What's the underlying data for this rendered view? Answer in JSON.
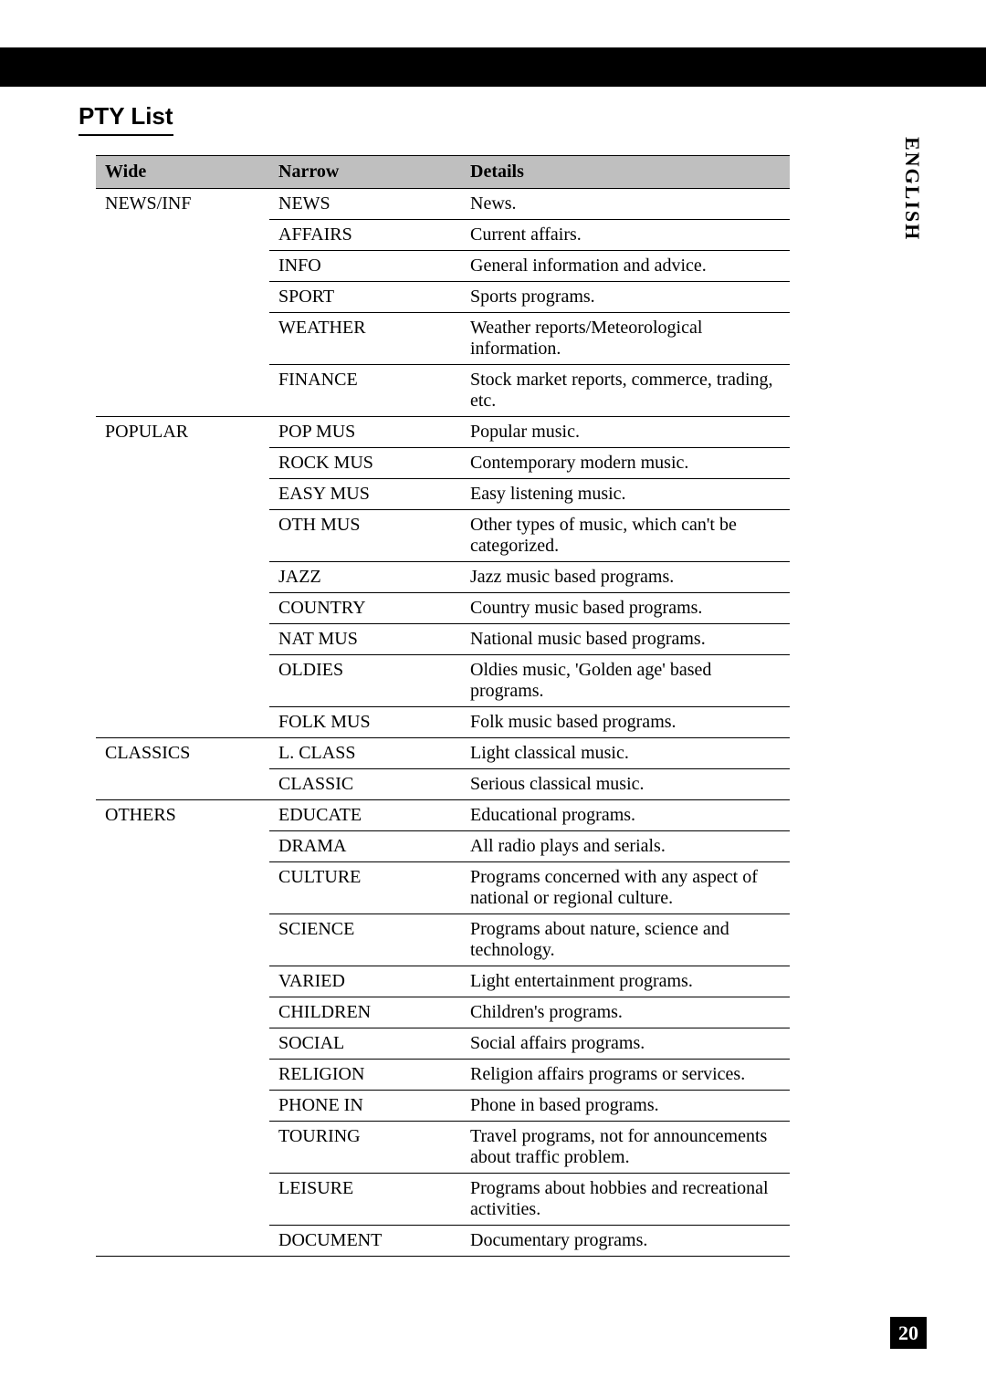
{
  "title": "PTY List",
  "side_tab": "ENGLISH",
  "page_number": "20",
  "table": {
    "columns": [
      "Wide",
      "Narrow",
      "Details"
    ],
    "groups": [
      {
        "wide": "NEWS/INF",
        "rows": [
          {
            "narrow": "NEWS",
            "details": "News."
          },
          {
            "narrow": "AFFAIRS",
            "details": "Current affairs."
          },
          {
            "narrow": "INFO",
            "details": "General information and advice."
          },
          {
            "narrow": "SPORT",
            "details": "Sports programs."
          },
          {
            "narrow": "WEATHER",
            "details": "Weather reports/Meteorological information."
          },
          {
            "narrow": "FINANCE",
            "details": "Stock market reports, commerce, trading, etc."
          }
        ]
      },
      {
        "wide": "POPULAR",
        "rows": [
          {
            "narrow": "POP MUS",
            "details": "Popular music."
          },
          {
            "narrow": "ROCK MUS",
            "details": "Contemporary modern music."
          },
          {
            "narrow": "EASY MUS",
            "details": "Easy listening music."
          },
          {
            "narrow": "OTH MUS",
            "details": "Other types of music, which can't be categorized."
          },
          {
            "narrow": "JAZZ",
            "details": "Jazz music based programs."
          },
          {
            "narrow": "COUNTRY",
            "details": "Country music based programs."
          },
          {
            "narrow": "NAT MUS",
            "details": "National music based programs."
          },
          {
            "narrow": "OLDIES",
            "details": "Oldies music, 'Golden age' based programs."
          },
          {
            "narrow": "FOLK MUS",
            "details": "Folk music based programs."
          }
        ]
      },
      {
        "wide": "CLASSICS",
        "rows": [
          {
            "narrow": "L. CLASS",
            "details": "Light classical music."
          },
          {
            "narrow": "CLASSIC",
            "details": "Serious classical music."
          }
        ]
      },
      {
        "wide": "OTHERS",
        "rows": [
          {
            "narrow": "EDUCATE",
            "details": "Educational programs."
          },
          {
            "narrow": "DRAMA",
            "details": "All radio plays and serials."
          },
          {
            "narrow": "CULTURE",
            "details": "Programs concerned with any aspect of national or regional culture."
          },
          {
            "narrow": "SCIENCE",
            "details": "Programs about nature, science and technology."
          },
          {
            "narrow": "VARIED",
            "details": "Light entertainment programs."
          },
          {
            "narrow": "CHILDREN",
            "details": "Children's programs."
          },
          {
            "narrow": "SOCIAL",
            "details": "Social affairs programs."
          },
          {
            "narrow": "RELIGION",
            "details": "Religion affairs programs or services."
          },
          {
            "narrow": "PHONE IN",
            "details": "Phone in based programs."
          },
          {
            "narrow": "TOURING",
            "details": "Travel programs, not for announcements about traffic problem."
          },
          {
            "narrow": "LEISURE",
            "details": "Programs about hobbies and recreational activities."
          },
          {
            "narrow": "DOCUMENT",
            "details": "Documentary programs."
          }
        ]
      }
    ]
  }
}
